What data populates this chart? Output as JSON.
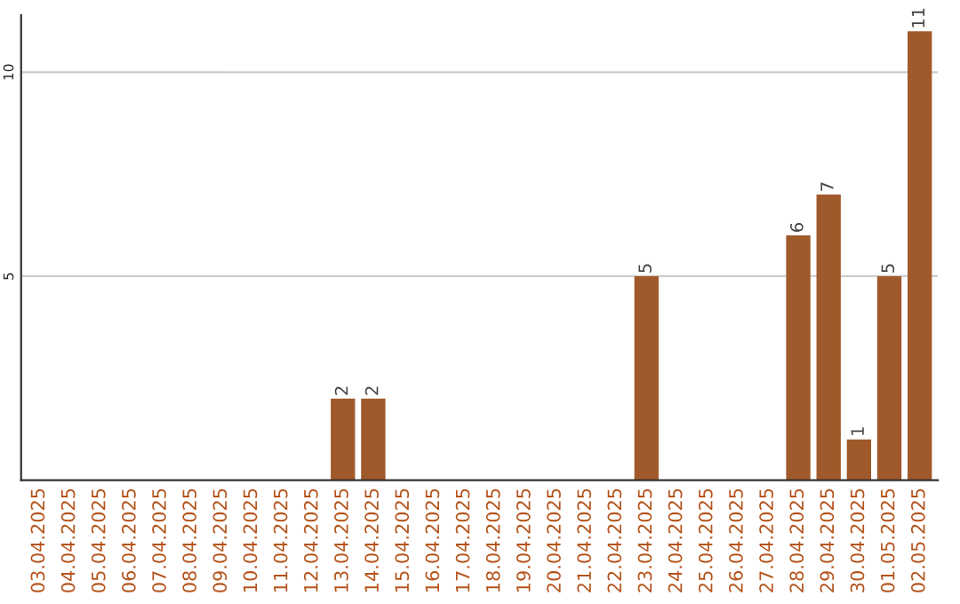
{
  "chart_data": {
    "type": "bar",
    "categories": [
      "03.04.2025",
      "04.04.2025",
      "05.04.2025",
      "06.04.2025",
      "07.04.2025",
      "08.04.2025",
      "09.04.2025",
      "10.04.2025",
      "11.04.2025",
      "12.04.2025",
      "13.04.2025",
      "14.04.2025",
      "15.04.2025",
      "16.04.2025",
      "17.04.2025",
      "18.04.2025",
      "19.04.2025",
      "20.04.2025",
      "21.04.2025",
      "22.04.2025",
      "23.04.2025",
      "24.04.2025",
      "25.04.2025",
      "26.04.2025",
      "27.04.2025",
      "28.04.2025",
      "29.04.2025",
      "30.04.2025",
      "01.05.2025",
      "02.05.2025"
    ],
    "values": [
      null,
      null,
      null,
      null,
      null,
      null,
      null,
      null,
      null,
      null,
      2,
      2,
      null,
      null,
      null,
      null,
      null,
      null,
      null,
      null,
      5,
      null,
      null,
      null,
      null,
      6,
      7,
      1,
      5,
      11
    ],
    "value_labels": [
      null,
      null,
      null,
      null,
      null,
      null,
      null,
      null,
      null,
      null,
      "2",
      "2",
      null,
      null,
      null,
      null,
      null,
      null,
      null,
      null,
      "5",
      null,
      null,
      null,
      null,
      "6",
      "7",
      "1",
      "5",
      "11"
    ],
    "color": "#a0592a",
    "ylim": [
      0,
      11.4
    ],
    "yticks": [
      5,
      10
    ],
    "grid": "y"
  }
}
